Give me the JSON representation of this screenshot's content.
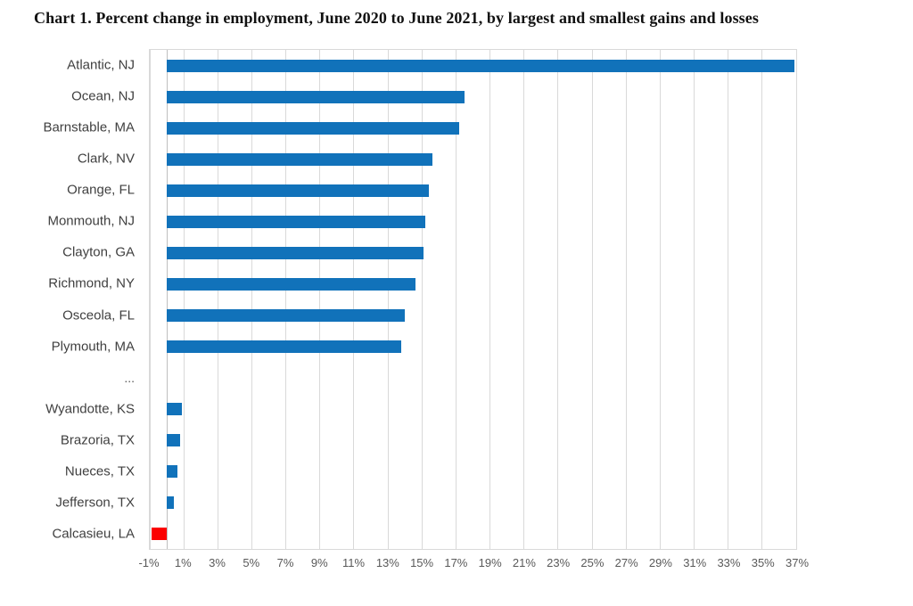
{
  "chart_data": {
    "type": "bar",
    "orientation": "horizontal",
    "title": "Chart 1. Percent change in employment, June 2020 to June 2021, by largest and smallest gains and losses",
    "xlabel": "",
    "ylabel": "",
    "xlim": [
      -1,
      37
    ],
    "tick_step": 2,
    "grid": "vertical",
    "legend": "none",
    "unit": "%",
    "x_tick_labels": [
      "-1%",
      "1%",
      "3%",
      "5%",
      "7%",
      "9%",
      "11%",
      "13%",
      "15%",
      "17%",
      "19%",
      "21%",
      "23%",
      "25%",
      "27%",
      "29%",
      "31%",
      "33%",
      "35%",
      "37%"
    ],
    "x_tick_values": [
      -1,
      1,
      3,
      5,
      7,
      9,
      11,
      13,
      15,
      17,
      19,
      21,
      23,
      25,
      27,
      29,
      31,
      33,
      35,
      37
    ],
    "separator_label": "...",
    "colors": {
      "positive_bar": "#1172ba",
      "negative_bar": "#fb0000",
      "gridline": "#d9d9d9",
      "zero_axis": "#bfbfbf",
      "category_text": "#404040",
      "tick_text": "#595959"
    },
    "rows": [
      {
        "label": "Atlantic, NJ",
        "value": 36.9
      },
      {
        "label": "Ocean, NJ",
        "value": 17.5
      },
      {
        "label": "Barnstable, MA",
        "value": 17.2
      },
      {
        "label": "Clark, NV",
        "value": 15.6
      },
      {
        "label": "Orange, FL",
        "value": 15.4
      },
      {
        "label": "Monmouth, NJ",
        "value": 15.2
      },
      {
        "label": "Clayton, GA",
        "value": 15.1
      },
      {
        "label": "Richmond, NY",
        "value": 14.6
      },
      {
        "label": "Osceola, FL",
        "value": 14.0
      },
      {
        "label": "Plymouth, MA",
        "value": 13.8
      },
      {
        "label": "...",
        "value": null
      },
      {
        "label": "Wyandotte, KS",
        "value": 0.9
      },
      {
        "label": "Brazoria, TX",
        "value": 0.8
      },
      {
        "label": "Nueces, TX",
        "value": 0.6
      },
      {
        "label": "Jefferson, TX",
        "value": 0.4
      },
      {
        "label": "Calcasieu, LA",
        "value": -0.9
      }
    ]
  }
}
